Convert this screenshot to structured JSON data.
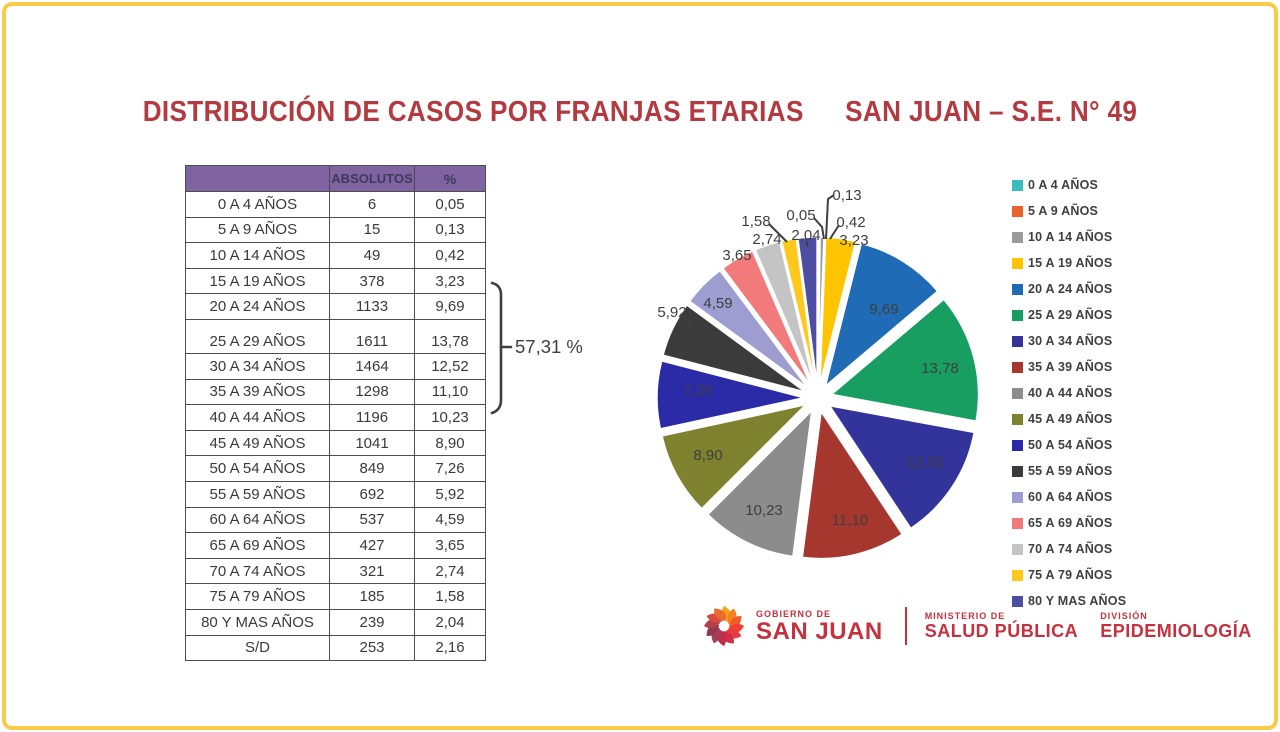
{
  "title": {
    "left": "DISTRIBUCIÓN DE CASOS POR FRANJAS ETARIAS",
    "right": "SAN JUAN – S.E. N° 49"
  },
  "colors": {
    "frame": "#F8CC46",
    "title": "#B23A40",
    "table_header_bg": "#8064A2",
    "brand_red": "#C5313E",
    "label_text": "#3F3F3F"
  },
  "table": {
    "headers": [
      "",
      "ABSOLUTOS",
      "%"
    ],
    "rows": [
      [
        "0 A 4 AÑOS",
        "6",
        "0,05"
      ],
      [
        "5 A 9 AÑOS",
        "15",
        "0,13"
      ],
      [
        "10 A 14 AÑOS",
        "49",
        "0,42"
      ],
      [
        "15 A 19 AÑOS",
        "378",
        "3,23"
      ],
      [
        "20 A 24 AÑOS",
        "1133",
        "9,69"
      ],
      [
        "25 A 29 AÑOS",
        "1611",
        "13,78"
      ],
      [
        "30 A 34 AÑOS",
        "1464",
        "12,52"
      ],
      [
        "35 A 39 AÑOS",
        "1298",
        "11,10"
      ],
      [
        "40 A 44 AÑOS",
        "1196",
        "10,23"
      ],
      [
        "45 A 49 AÑOS",
        "1041",
        "8,90"
      ],
      [
        "50 A 54 AÑOS",
        "849",
        "7,26"
      ],
      [
        "55 A 59 AÑOS",
        "692",
        "5,92"
      ],
      [
        "60 A 64 AÑOS",
        "537",
        "4,59"
      ],
      [
        "65 A 69 AÑOS",
        "427",
        "3,65"
      ],
      [
        "70 A 74 AÑOS",
        "321",
        "2,74"
      ],
      [
        "75 A 79 AÑOS",
        "185",
        "1,58"
      ],
      [
        "80 Y MAS AÑOS",
        "239",
        "2,04"
      ],
      [
        "S/D",
        "253",
        "2,16"
      ]
    ],
    "bracket_label": "57,31 %"
  },
  "chart_data": {
    "type": "pie",
    "title": "",
    "categories": [
      "0 A 4 AÑOS",
      "5 A 9 AÑOS",
      "10 A 14 AÑOS",
      "15 A 19 AÑOS",
      "20 A 24 AÑOS",
      "25 A 29 AÑOS",
      "30 A 34 AÑOS",
      "35 A 39 AÑOS",
      "40 A 44 AÑOS",
      "45 A 49 AÑOS",
      "50 A 54 AÑOS",
      "55 A 59 AÑOS",
      "60 A 64 AÑOS",
      "65 A 69 AÑOS",
      "70 A 74 AÑOS",
      "75 A 79 AÑOS",
      "80 Y MAS AÑOS"
    ],
    "values": [
      0.05,
      0.13,
      0.42,
      3.23,
      9.69,
      13.78,
      12.52,
      11.1,
      10.23,
      8.9,
      7.26,
      5.92,
      4.59,
      3.65,
      2.74,
      1.58,
      2.04
    ],
    "value_labels": [
      "0,05",
      "0,13",
      "0,42",
      "3,23",
      "9,69",
      "13,78",
      "12,52",
      "11,10",
      "10,23",
      "8,90",
      "7,26",
      "5,92",
      "4,59",
      "3,65",
      "2,74",
      "1,58",
      "2,04"
    ],
    "colors": [
      "#3BBCC0",
      "#E8642C",
      "#9B9B9B",
      "#FFC400",
      "#1F6BB5",
      "#179E60",
      "#32339B",
      "#A5372F",
      "#8C8C8C",
      "#7E812E",
      "#2B2BA8",
      "#3B3B3B",
      "#9D9DD1",
      "#F27A7A",
      "#C4C4C4",
      "#FFC81A",
      "#4D4DA2"
    ],
    "legend_position": "right",
    "start_angle_deg": 0,
    "direction": "clockwise",
    "exploded": true,
    "grid": false
  },
  "footer": {
    "gobierno_small": "GOBIERNO DE",
    "gobierno_large": "SAN JUAN",
    "ministerio_small": "MINISTERIO DE",
    "ministerio_large": "SALUD PÚBLICA",
    "division_small": "DIVISIÓN",
    "division_large": "EPIDEMIOLOGÍA"
  }
}
